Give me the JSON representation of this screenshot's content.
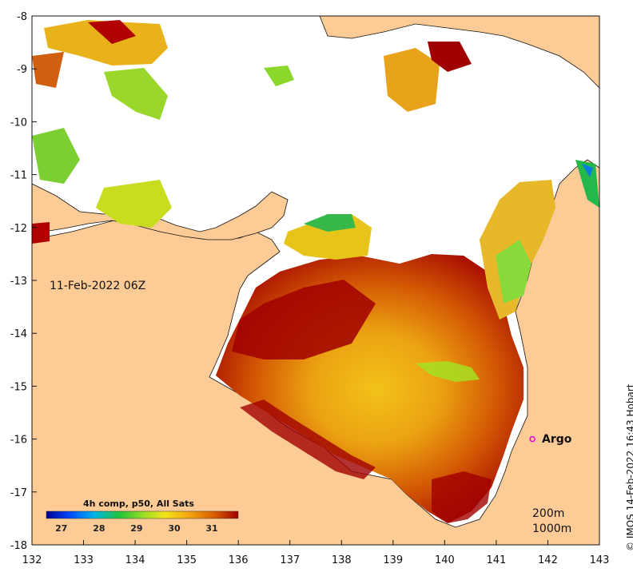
{
  "map": {
    "date_label": "11-Feb-2022 06Z",
    "credit": "© IMOS 14-Feb-2022 16:43 Hobart",
    "x_ticks": [
      "132",
      "133",
      "134",
      "135",
      "136",
      "137",
      "138",
      "139",
      "140",
      "141",
      "142",
      "143"
    ],
    "y_ticks": [
      "-8",
      "-9",
      "-10",
      "-11",
      "-12",
      "-13",
      "-14",
      "-15",
      "-16",
      "-17",
      "-18"
    ],
    "lon_range": [
      132,
      143
    ],
    "lat_range": [
      -18,
      -8
    ],
    "depth_labels": [
      "200m",
      "1000m"
    ],
    "land_color": "#fdcb96",
    "no_data_color": "#ffffff"
  },
  "colorbar": {
    "title": "4h comp, p50, All Sats",
    "ticks": [
      "27",
      "28",
      "29",
      "30",
      "31"
    ],
    "range": [
      26.6,
      31.7
    ],
    "colors": [
      "#00008f",
      "#0047ff",
      "#00b4e8",
      "#22c43a",
      "#a6e022",
      "#f5e317",
      "#f4a20f",
      "#d85a00",
      "#a00000"
    ]
  },
  "argo": {
    "label": "Argo",
    "lon": 141.7,
    "lat": -16.0,
    "color": "#e000e0"
  }
}
